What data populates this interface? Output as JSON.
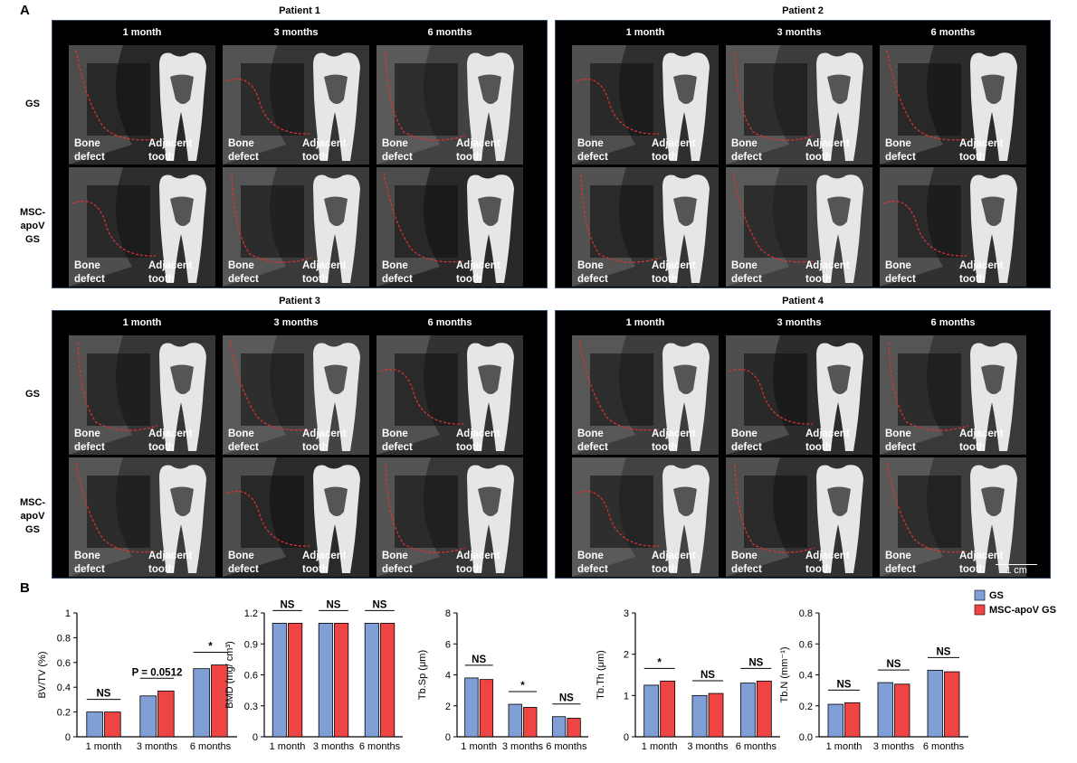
{
  "panel_labels": [
    "A",
    "B"
  ],
  "panel_a": {
    "patients": [
      {
        "title": "Patient 1"
      },
      {
        "title": "Patient 2"
      },
      {
        "title": "Patient 3"
      },
      {
        "title": "Patient 4"
      }
    ],
    "columns": [
      "1 month",
      "3 months",
      "6 months"
    ],
    "rows": [
      "GS",
      "MSC-\napoV\nGS"
    ],
    "image_labels": [
      "Bone\ndefect",
      "Adjacent\ntooth"
    ],
    "scale_bar": "1 cm"
  },
  "chart_data": [
    {
      "type": "bar",
      "y_label": "BV/TV (%)",
      "categories": [
        "1 month",
        "3 months",
        "6 months"
      ],
      "series": [
        {
          "name": "GS",
          "color": "#7f9fd6",
          "values": [
            0.2,
            0.33,
            0.55
          ]
        },
        {
          "name": "MSC-apoV GS",
          "color": "#ee4444",
          "values": [
            0.2,
            0.37,
            0.58
          ]
        }
      ],
      "annotations": [
        "NS",
        "P = 0.0512",
        "*"
      ],
      "ylim": [
        0,
        1
      ],
      "yticks": [
        0,
        0.2,
        0.4,
        0.6,
        0.8,
        1
      ]
    },
    {
      "type": "bar",
      "y_label": "BMD (mg/ cm³)",
      "categories": [
        "1 month",
        "3 months",
        "6 months"
      ],
      "series": [
        {
          "name": "GS",
          "color": "#7f9fd6",
          "values": [
            1.1,
            1.1,
            1.1
          ]
        },
        {
          "name": "MSC-apoV GS",
          "color": "#ee4444",
          "values": [
            1.1,
            1.1,
            1.1
          ]
        }
      ],
      "annotations": [
        "NS",
        "NS",
        "NS"
      ],
      "ylim": [
        0,
        1.2
      ],
      "yticks": [
        0,
        0.3,
        0.6,
        0.9,
        1.2
      ]
    },
    {
      "type": "bar",
      "y_label": "Tb.Sp (μm)",
      "categories": [
        "1 month",
        "3 months",
        "6 months"
      ],
      "series": [
        {
          "name": "GS",
          "color": "#7f9fd6",
          "values": [
            3.8,
            2.1,
            1.3
          ]
        },
        {
          "name": "MSC-apoV GS",
          "color": "#ee4444",
          "values": [
            3.7,
            1.9,
            1.2
          ]
        }
      ],
      "annotations": [
        "NS",
        "*",
        "NS"
      ],
      "ylim": [
        0,
        8
      ],
      "yticks": [
        0,
        2,
        4,
        6,
        8
      ]
    },
    {
      "type": "bar",
      "y_label": "Tb.Th (μm)",
      "categories": [
        "1 month",
        "3 months",
        "6 months"
      ],
      "series": [
        {
          "name": "GS",
          "color": "#7f9fd6",
          "values": [
            1.25,
            1.0,
            1.3
          ]
        },
        {
          "name": "MSC-apoV GS",
          "color": "#ee4444",
          "values": [
            1.35,
            1.05,
            1.35
          ]
        }
      ],
      "annotations": [
        "*",
        "NS",
        "NS"
      ],
      "ylim": [
        0,
        3
      ],
      "yticks": [
        0,
        1,
        2,
        3
      ]
    },
    {
      "type": "bar",
      "y_label": "Tb.N (mm⁻¹)",
      "categories": [
        "1 month",
        "3 months",
        "6 months"
      ],
      "series": [
        {
          "name": "GS",
          "color": "#7f9fd6",
          "values": [
            0.21,
            0.35,
            0.43
          ]
        },
        {
          "name": "MSC-apoV GS",
          "color": "#ee4444",
          "values": [
            0.22,
            0.34,
            0.42
          ]
        }
      ],
      "annotations": [
        "NS",
        "NS",
        "NS"
      ],
      "ylim": [
        0,
        0.8
      ],
      "yticks": [
        {
          "value": 0,
          "label": "0.0"
        },
        0.2,
        0.4,
        0.6,
        0.8
      ]
    }
  ]
}
